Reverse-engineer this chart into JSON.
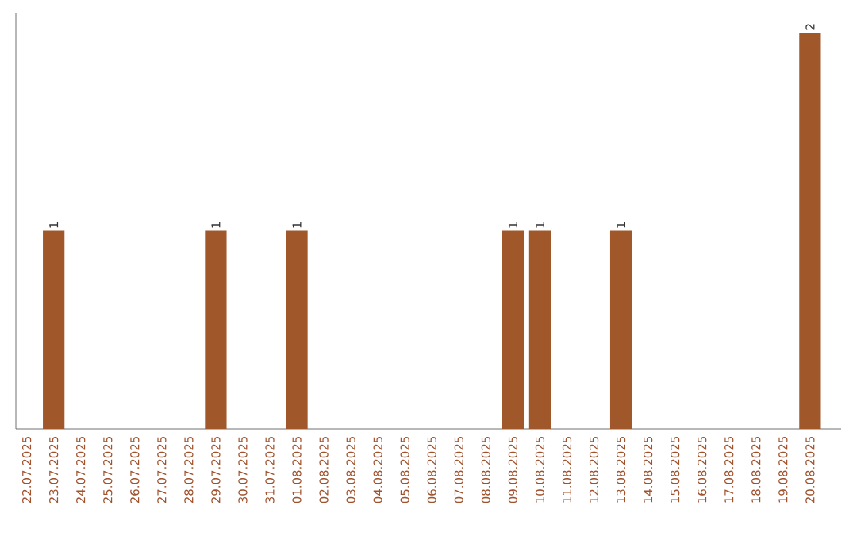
{
  "chart_data": {
    "type": "bar",
    "categories": [
      "22.07.2025",
      "23.07.2025",
      "24.07.2025",
      "25.07.2025",
      "26.07.2025",
      "27.07.2025",
      "28.07.2025",
      "29.07.2025",
      "30.07.2025",
      "31.07.2025",
      "01.08.2025",
      "02.08.2025",
      "03.08.2025",
      "04.08.2025",
      "05.08.2025",
      "06.08.2025",
      "07.08.2025",
      "08.08.2025",
      "09.08.2025",
      "10.08.2025",
      "11.08.2025",
      "12.08.2025",
      "13.08.2025",
      "14.08.2025",
      "15.08.2025",
      "16.08.2025",
      "17.08.2025",
      "18.08.2025",
      "19.08.2025",
      "20.08.2025"
    ],
    "values": [
      0,
      1,
      0,
      0,
      0,
      0,
      0,
      1,
      0,
      0,
      1,
      0,
      0,
      0,
      0,
      0,
      0,
      0,
      1,
      1,
      0,
      0,
      1,
      0,
      0,
      0,
      0,
      0,
      0,
      2
    ],
    "value_labels": [
      null,
      "1",
      null,
      null,
      null,
      null,
      null,
      "1",
      null,
      null,
      "1",
      null,
      null,
      null,
      null,
      null,
      null,
      null,
      "1",
      "1",
      null,
      null,
      "1",
      null,
      null,
      null,
      null,
      null,
      null,
      "2"
    ],
    "color": "#a0582a"
  }
}
